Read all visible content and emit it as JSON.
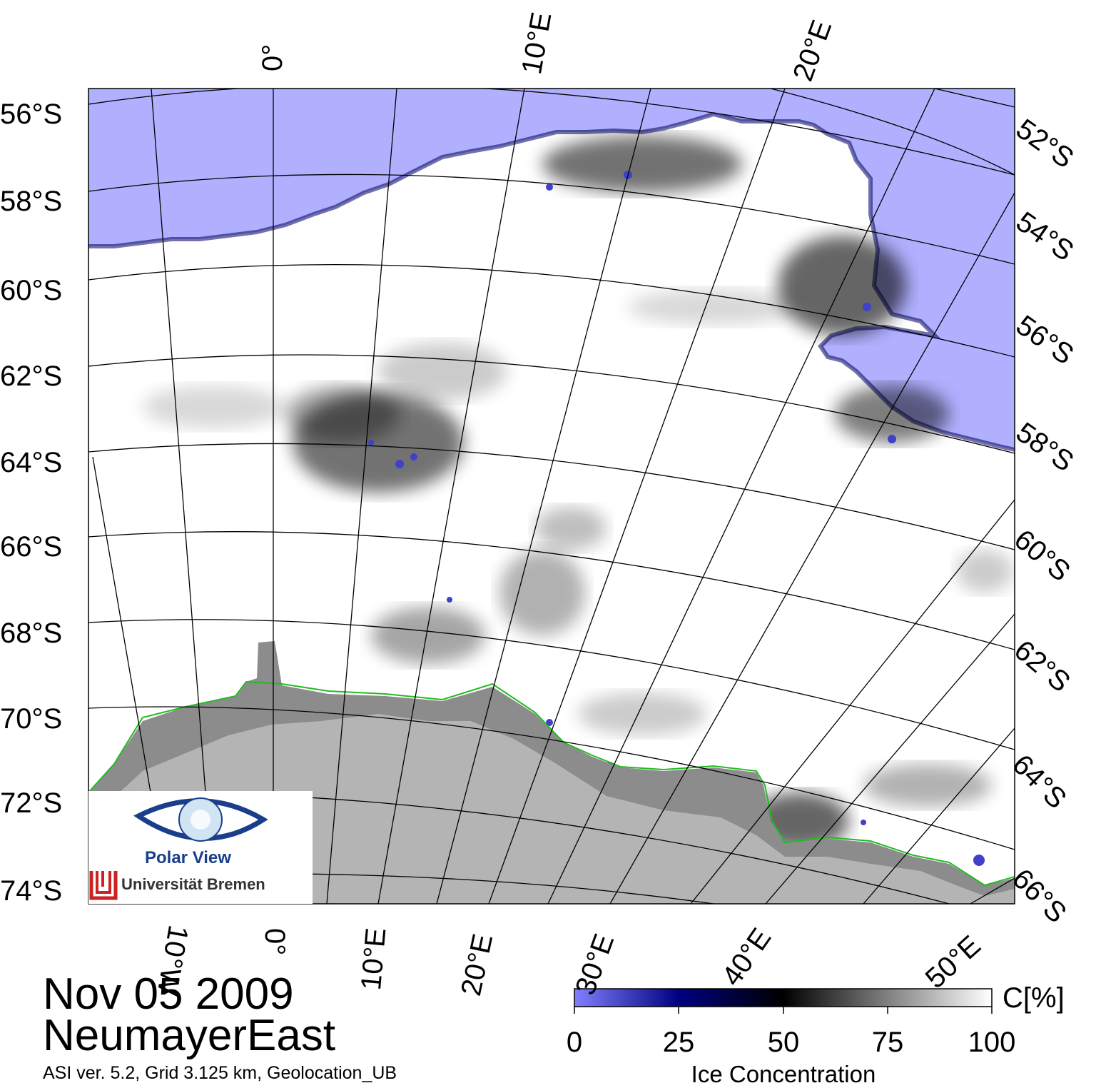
{
  "header": {
    "date": "Nov 05 2009",
    "region": "NeumayerEast",
    "caption": "ASI ver. 5.2,  Grid 3.125 km, Geolocation_UB"
  },
  "map": {
    "left_lat_labels": [
      "56°S",
      "58°S",
      "60°S",
      "62°S",
      "64°S",
      "66°S",
      "68°S",
      "70°S",
      "72°S",
      "74°S"
    ],
    "right_lat_labels": [
      "52°S",
      "54°S",
      "56°S",
      "58°S",
      "60°S",
      "62°S",
      "64°S",
      "66°S"
    ],
    "top_lon_labels": [
      "0°",
      "10°E",
      "20°E"
    ],
    "bottom_lon_labels": [
      "10°W",
      "0°",
      "10°E",
      "20°E",
      "30°E",
      "40°E",
      "50°E"
    ],
    "colors": {
      "open_water": "#b0b0ff",
      "ice": "#ffffff",
      "land": "#b4b4b4",
      "ice_shelf": "#8c8c8c",
      "coastline": "#22bb22",
      "grid": "#000000"
    }
  },
  "colorbar": {
    "label": "Ice Concentration",
    "unit": "C[%]",
    "ticks": [
      "0",
      "25",
      "50",
      "75",
      "100"
    ],
    "min": 0,
    "max": 100,
    "gradient_colors": [
      "#8080ff",
      "#000080",
      "#000000",
      "#808080",
      "#ffffff"
    ]
  },
  "logo": {
    "name": "Polar View",
    "institution": "Universität Bremen"
  }
}
